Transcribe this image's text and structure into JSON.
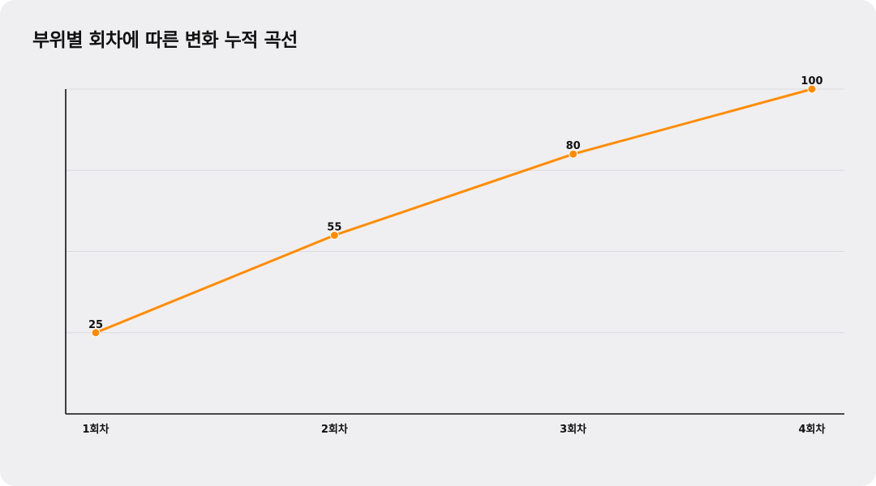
{
  "title": "부위별 회차에 따른 변화 누적 곡선",
  "colors": {
    "background": "#efeff2",
    "line": "#ff8c00",
    "grid": "#dcdce0",
    "axis": "#111111",
    "text": "#111111"
  },
  "chart_data": {
    "type": "line",
    "title": "부위별 회차에 따른 변화 누적 곡선",
    "xlabel": "",
    "ylabel": "",
    "categories": [
      "1회차",
      "2회차",
      "3회차",
      "4회차"
    ],
    "series": [
      {
        "values": [
          25,
          55,
          80,
          100
        ]
      }
    ],
    "ylim": [
      0,
      100
    ],
    "grid": true,
    "legend": "none"
  }
}
